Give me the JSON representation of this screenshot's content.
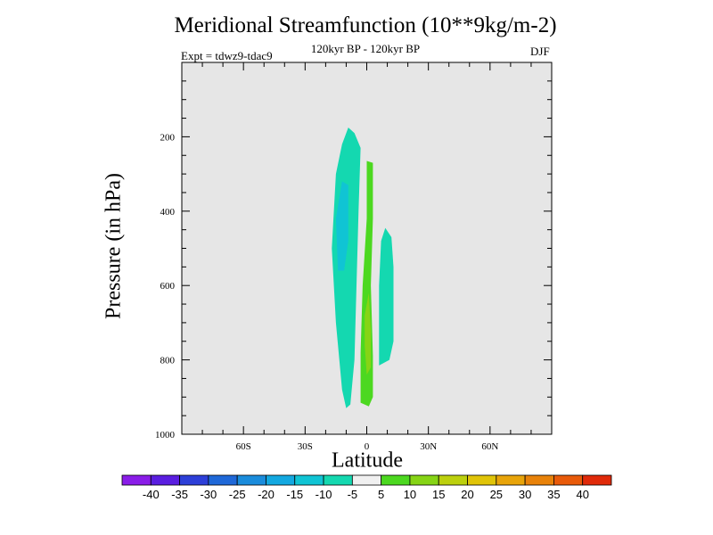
{
  "chart_data": {
    "type": "contour",
    "title": "Meridional Streamfunction (10**9kg/m-2)",
    "subtitle": "120kyr BP - 120kyr BP",
    "experiment": "Expt = tdwz9-tdac9",
    "season": "DJF",
    "xlabel": "Latitude",
    "ylabel": "Pressure (in hPa)",
    "xlim": [
      -90,
      90
    ],
    "ylim": [
      1000,
      0
    ],
    "x_ticks": [
      "60S",
      "30S",
      "0",
      "30N",
      "60N"
    ],
    "x_tick_values": [
      -60,
      -30,
      0,
      30,
      60
    ],
    "y_ticks": [
      "200",
      "400",
      "600",
      "800",
      "1000"
    ],
    "y_tick_values": [
      200,
      400,
      600,
      800,
      1000
    ],
    "background_color": "#e6e6e6",
    "colorbar": {
      "labels": [
        "-40",
        "-35",
        "-30",
        "-25",
        "-20",
        "-15",
        "-10",
        "-5",
        "5",
        "10",
        "15",
        "20",
        "25",
        "30",
        "35",
        "40"
      ],
      "colors": [
        "#8a1de8",
        "#5a1ee0",
        "#2d3fd8",
        "#1f68d8",
        "#1a8cdc",
        "#13a8e0",
        "#10c4d4",
        "#14d8b0",
        "#f0f0f0",
        "#4cd820",
        "#86d415",
        "#bcd00d",
        "#e0c408",
        "#e8a40a",
        "#e8820a",
        "#e85a0a",
        "#e02a0a"
      ]
    },
    "regions": [
      {
        "value_class": "-10 to -5",
        "color": "#14d8b0",
        "outline": [
          [
            -10,
            930
          ],
          [
            -12,
            880
          ],
          [
            -15,
            700
          ],
          [
            -17,
            500
          ],
          [
            -15,
            300
          ],
          [
            -12,
            220
          ],
          [
            -9,
            175
          ],
          [
            -6,
            190
          ],
          [
            -3,
            230
          ],
          [
            -4,
            400
          ],
          [
            -5,
            600
          ],
          [
            -6,
            800
          ],
          [
            -8,
            920
          ]
        ]
      },
      {
        "value_class": "-15 to -10",
        "color": "#10c4d4",
        "outline": [
          [
            -14,
            560
          ],
          [
            -15,
            420
          ],
          [
            -12,
            320
          ],
          [
            -9,
            330
          ],
          [
            -9,
            480
          ],
          [
            -11,
            560
          ]
        ]
      },
      {
        "value_class": "-10 to -5",
        "color": "#14d8b0",
        "outline": [
          [
            6,
            815
          ],
          [
            6,
            600
          ],
          [
            7,
            480
          ],
          [
            9,
            445
          ],
          [
            12,
            470
          ],
          [
            13,
            550
          ],
          [
            13,
            750
          ],
          [
            11,
            800
          ]
        ]
      },
      {
        "value_class": "5 to 10",
        "color": "#4cd820",
        "outline": [
          [
            0,
            265
          ],
          [
            3,
            270
          ],
          [
            3,
            420
          ],
          [
            2,
            600
          ],
          [
            3,
            790
          ],
          [
            3,
            900
          ],
          [
            1,
            925
          ],
          [
            -3,
            915
          ],
          [
            -3,
            780
          ],
          [
            -2,
            600
          ],
          [
            0,
            420
          ]
        ]
      },
      {
        "value_class": "10 to 15",
        "color": "#86d415",
        "outline": [
          [
            1,
            620
          ],
          [
            2,
            720
          ],
          [
            2,
            820
          ],
          [
            0,
            840
          ],
          [
            -1,
            760
          ],
          [
            -1,
            680
          ]
        ]
      }
    ]
  }
}
